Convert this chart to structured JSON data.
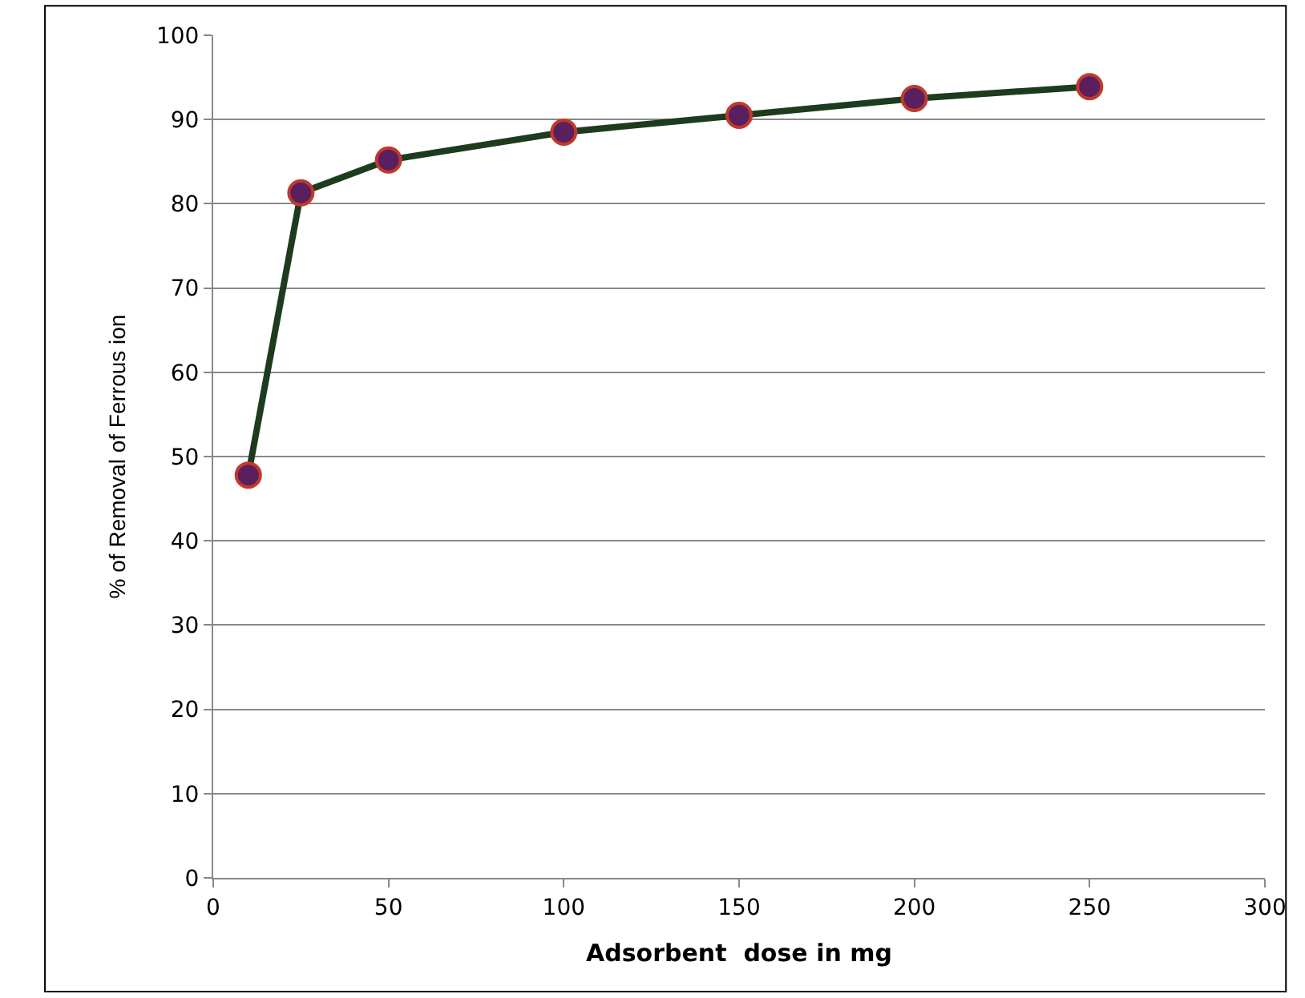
{
  "chart_data": {
    "type": "line",
    "xlabel": "Adsorbent  dose in mg",
    "ylabel": "% of Removal of Ferrous ion",
    "x": [
      10,
      25,
      50,
      100,
      150,
      200,
      250
    ],
    "series": [
      {
        "color": "#1e3b1e",
        "values": [
          47.8,
          81.3,
          85.2,
          88.5,
          90.5,
          92.5,
          93.9
        ]
      }
    ],
    "xlim": [
      0,
      300
    ],
    "xticks": [
      0,
      50,
      100,
      150,
      200,
      250,
      300
    ],
    "ylim": [
      0,
      100
    ],
    "yticks": [
      0,
      10,
      20,
      30,
      40,
      50,
      60,
      70,
      80,
      90,
      100
    ],
    "grid": "y",
    "marker": "circle",
    "line_style": "solid"
  }
}
